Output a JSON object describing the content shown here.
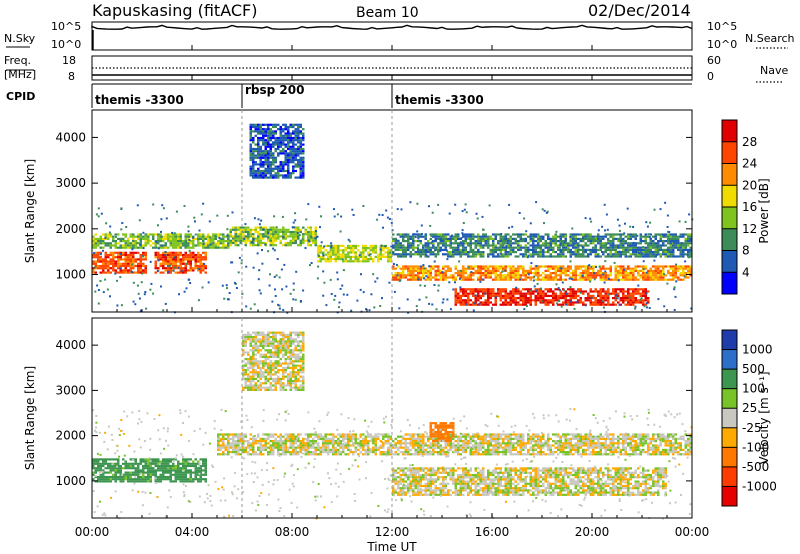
{
  "header": {
    "station": "Kapuskasing (fitACF)",
    "beam": "Beam 10",
    "date": "02/Dec/2014"
  },
  "panels": {
    "nsky": {
      "label_left": "N.Sky",
      "label_right": "N.Search",
      "ticks_left": [
        "10^5",
        "10^0"
      ],
      "ticks_right": [
        "10^5",
        "10^0"
      ]
    },
    "freq": {
      "label_left_1": "Freq.",
      "label_left_2": "[MHz]",
      "label_right": "Nave",
      "ticks_left": [
        "18",
        "8"
      ],
      "ticks_right": [
        "60",
        "0"
      ]
    },
    "cpid": {
      "label": "CPID",
      "segments": [
        {
          "label": "themis -3300",
          "start_hour": 0
        },
        {
          "label": "rbsp 200",
          "start_hour": 6
        },
        {
          "label": "themis -3300",
          "start_hour": 12
        }
      ]
    }
  },
  "axes": {
    "ylabel": "Slant Range [km]",
    "xlabel": "Time UT",
    "x_ticks": [
      "00:00",
      "04:00",
      "08:00",
      "12:00",
      "16:00",
      "20:00",
      "00:00"
    ],
    "y_ticks": [
      "1000",
      "2000",
      "3000",
      "4000"
    ]
  },
  "colorbars": {
    "power": {
      "label": "Power [dB]",
      "ticks": [
        "4",
        "8",
        "12",
        "16",
        "20",
        "24",
        "28"
      ],
      "colors": [
        "#0000ff",
        "#1e5ab4",
        "#3c8c5a",
        "#7fc31e",
        "#f0dc00",
        "#ff8c00",
        "#ff4600",
        "#e10000"
      ]
    },
    "velocity": {
      "label": "Velocity [m s⁻¹]",
      "ticks": [
        "1000",
        "500",
        "100",
        "25",
        "-25",
        "-100",
        "-500",
        "-1000"
      ],
      "colors": [
        "#1e3caa",
        "#2d6ec8",
        "#3c9650",
        "#78c328",
        "#c8c8c0",
        "#ffaa00",
        "#ff7800",
        "#ff3c00",
        "#e60000"
      ]
    }
  },
  "chart_data": [
    {
      "type": "heatmap",
      "title": "Power [dB]",
      "xlabel": "Time UT",
      "ylabel": "Slant Range [km]",
      "xlim": [
        0,
        24
      ],
      "ylim": [
        180,
        4600
      ],
      "range_bands": [
        {
          "from_hour": 0.0,
          "to_hour": 2.2,
          "range_km": [
            1050,
            1500
          ],
          "value_db": 26
        },
        {
          "from_hour": 2.5,
          "to_hour": 4.6,
          "range_km": [
            1050,
            1500
          ],
          "value_db": 26
        },
        {
          "from_hour": 0.0,
          "to_hour": 5.5,
          "range_km": [
            1600,
            1900
          ],
          "value_db": 14
        },
        {
          "from_hour": 5.5,
          "to_hour": 9.0,
          "range_km": [
            1650,
            2050
          ],
          "value_db": 14
        },
        {
          "from_hour": 9.0,
          "to_hour": 12.0,
          "range_km": [
            1300,
            1650
          ],
          "value_db": 16
        },
        {
          "from_hour": 12.0,
          "to_hour": 24.0,
          "range_km": [
            900,
            1200
          ],
          "value_db": 22
        },
        {
          "from_hour": 14.5,
          "to_hour": 22.3,
          "range_km": [
            350,
            700
          ],
          "value_db": 28
        },
        {
          "from_hour": 6.3,
          "to_hour": 8.5,
          "range_km": [
            3100,
            4300
          ],
          "value_db": 6
        },
        {
          "from_hour": 12.0,
          "to_hour": 24.0,
          "range_km": [
            1400,
            1900
          ],
          "value_db": 9
        }
      ]
    },
    {
      "type": "heatmap",
      "title": "Velocity [m s⁻¹]",
      "xlabel": "Time UT",
      "ylabel": "Slant Range [km]",
      "xlim": [
        0,
        24
      ],
      "ylim": [
        180,
        4600
      ],
      "range_bands": [
        {
          "from_hour": 0.0,
          "to_hour": 4.6,
          "range_km": [
            1000,
            1500
          ],
          "value_ms": 150
        },
        {
          "from_hour": 5.0,
          "to_hour": 24.0,
          "range_km": [
            1600,
            2050
          ],
          "value_ms": 0
        },
        {
          "from_hour": 12.0,
          "to_hour": 23.0,
          "range_km": [
            700,
            1300
          ],
          "value_ms": 0
        },
        {
          "from_hour": 13.5,
          "to_hour": 14.5,
          "range_km": [
            1900,
            2300
          ],
          "value_ms": -300
        },
        {
          "from_hour": 6.0,
          "to_hour": 8.5,
          "range_km": [
            3000,
            4300
          ],
          "value_ms": 0
        }
      ]
    }
  ]
}
